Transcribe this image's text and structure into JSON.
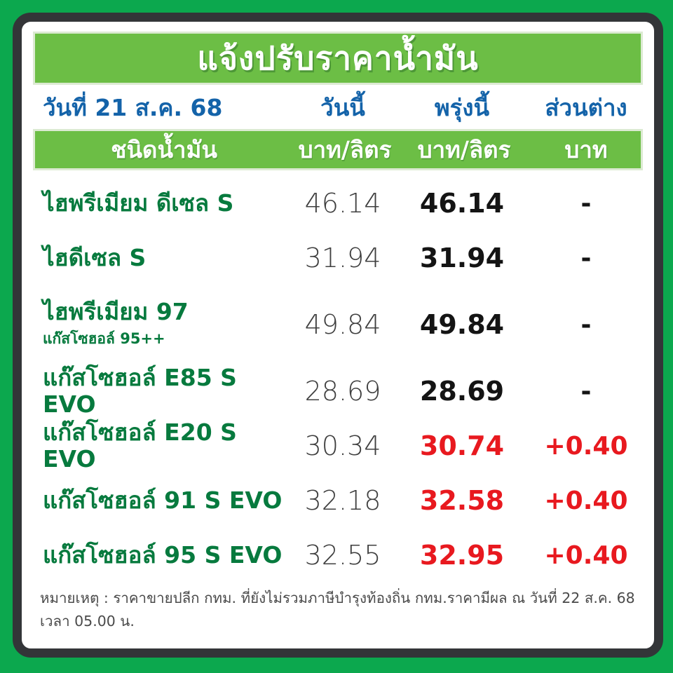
{
  "title": "แจ้งปรับราคาน้ำมัน",
  "header": {
    "date_label": "วันที่ 21 ส.ค. 68",
    "col_today": "วันนี้",
    "col_tomorrow": "พรุ่งนี้",
    "col_diff": "ส่วนต่าง"
  },
  "subheader": {
    "fuel_type": "ชนิดน้ำมัน",
    "unit_today": "บาท/ลิตร",
    "unit_tomorrow": "บาท/ลิตร",
    "unit_diff": "บาท"
  },
  "rows": [
    {
      "name": "ไฮพรีเมียม ดีเซล S",
      "subname": "",
      "today": "46.14",
      "tomorrow": "46.14",
      "diff": "-",
      "changed": false
    },
    {
      "name": "ไฮดีเซล S",
      "subname": "",
      "today": "31.94",
      "tomorrow": "31.94",
      "diff": "-",
      "changed": false
    },
    {
      "name": "ไฮพรีเมียม 97",
      "subname": "แก๊สโซฮอล์ 95++",
      "today": "49.84",
      "tomorrow": "49.84",
      "diff": "-",
      "changed": false
    },
    {
      "name": "แก๊สโซฮอล์ E85 S EVO",
      "subname": "",
      "today": "28.69",
      "tomorrow": "28.69",
      "diff": "-",
      "changed": false
    },
    {
      "name": "แก๊สโซฮอล์ E20 S EVO",
      "subname": "",
      "today": "30.34",
      "tomorrow": "30.74",
      "diff": "+0.40",
      "changed": true
    },
    {
      "name": "แก๊สโซฮอล์ 91 S EVO",
      "subname": "",
      "today": "32.18",
      "tomorrow": "32.58",
      "diff": "+0.40",
      "changed": true
    },
    {
      "name": "แก๊สโซฮอล์ 95 S EVO",
      "subname": "",
      "today": "32.55",
      "tomorrow": "32.95",
      "diff": "+0.40",
      "changed": true
    }
  ],
  "footer": {
    "note": "หมายเหตุ :  ราคาขายปลีก กทม. ที่ยังไม่รวมภาษีบำรุงท้องถิ่น  กทม.ราคามีผล ณ วันที่ 22 ส.ค. 68 เวลา 05.00 น."
  },
  "colors": {
    "frame_green": "#0ca84e",
    "border_dark": "#333538",
    "banner_green": "#6cbe45",
    "header_blue": "#1463a9",
    "fuel_green": "#077a3e",
    "changed_red": "#e8191f",
    "today_gray": "#3f3f3f",
    "tomorrow_black": "#141414"
  },
  "chart_data": {
    "type": "table",
    "title": "แจ้งปรับราคาน้ำมัน",
    "date": "วันที่ 21 ส.ค. 68",
    "effective": "กทม.ราคามีผล ณ วันที่ 22 ส.ค. 68 เวลา 05.00 น.",
    "columns": [
      "ชนิดน้ำมัน",
      "วันนี้ (บาท/ลิตร)",
      "พรุ่งนี้ (บาท/ลิตร)",
      "ส่วนต่าง (บาท)"
    ],
    "rows": [
      [
        "ไฮพรีเมียม ดีเซล S",
        46.14,
        46.14,
        null
      ],
      [
        "ไฮดีเซล S",
        31.94,
        31.94,
        null
      ],
      [
        "ไฮพรีเมียม 97 (แก๊สโซฮอล์ 95++)",
        49.84,
        49.84,
        null
      ],
      [
        "แก๊สโซฮอล์ E85 S EVO",
        28.69,
        28.69,
        null
      ],
      [
        "แก๊สโซฮอล์ E20 S EVO",
        30.34,
        30.74,
        0.4
      ],
      [
        "แก๊สโซฮอล์ 91 S EVO",
        32.18,
        32.58,
        0.4
      ],
      [
        "แก๊สโซฮอล์ 95 S EVO",
        32.55,
        32.95,
        0.4
      ]
    ]
  }
}
